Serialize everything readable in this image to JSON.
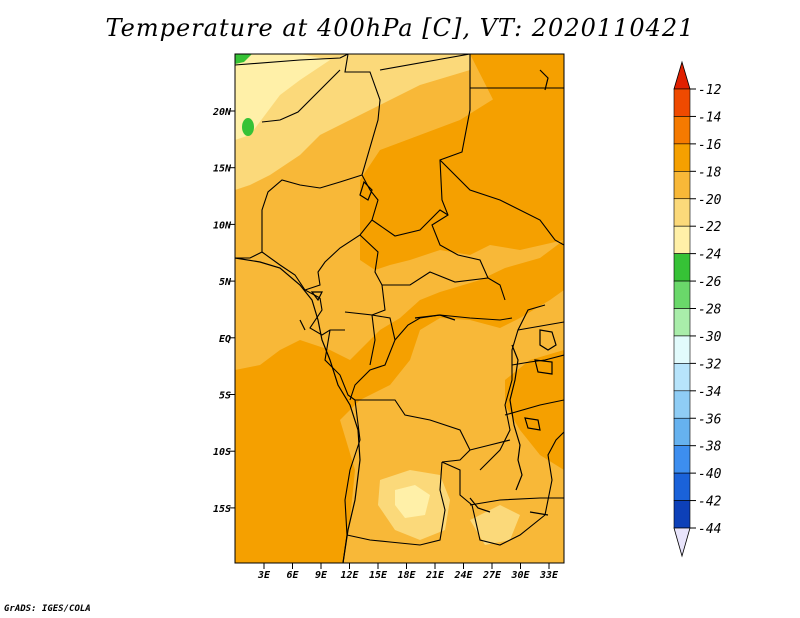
{
  "title": "Temperature at 400hPa [C], VT: 2020110421",
  "credit": "GrADS: IGES/COLA",
  "map": {
    "lat_labels": [
      "20N",
      "15N",
      "10N",
      "5N",
      "EQ",
      "5S",
      "10S",
      "15S"
    ],
    "lon_labels": [
      "3E",
      "6E",
      "9E",
      "12E",
      "15E",
      "18E",
      "21E",
      "24E",
      "27E",
      "30E",
      "33E"
    ],
    "fill_colors": {
      "minus14_to_minus16": "#f5a000",
      "minus16_to_minus18": "#f8b838",
      "minus18_to_minus20": "#fbd97a",
      "minus20_to_minus22": "#fff0a8",
      "minus22_to_minus24": "#36c236"
    }
  },
  "colorbar": {
    "labels": [
      "-12",
      "-14",
      "-16",
      "-18",
      "-20",
      "-22",
      "-24",
      "-26",
      "-28",
      "-30",
      "-32",
      "-34",
      "-36",
      "-38",
      "-40",
      "-42",
      "-44"
    ],
    "colors": [
      "#ef4a00",
      "#f57a00",
      "#f5a000",
      "#f8b838",
      "#fbd97a",
      "#fff0a8",
      "#36c236",
      "#6ad86a",
      "#a9edaa",
      "#e2fbfc",
      "#b7e4fb",
      "#8fcdf5",
      "#66b2ef",
      "#3d8eef",
      "#1a62d9",
      "#0d40b8",
      "#0a1a78"
    ],
    "high_extend_color": "#e02000",
    "low_extend_color": "#e8e4fb"
  }
}
